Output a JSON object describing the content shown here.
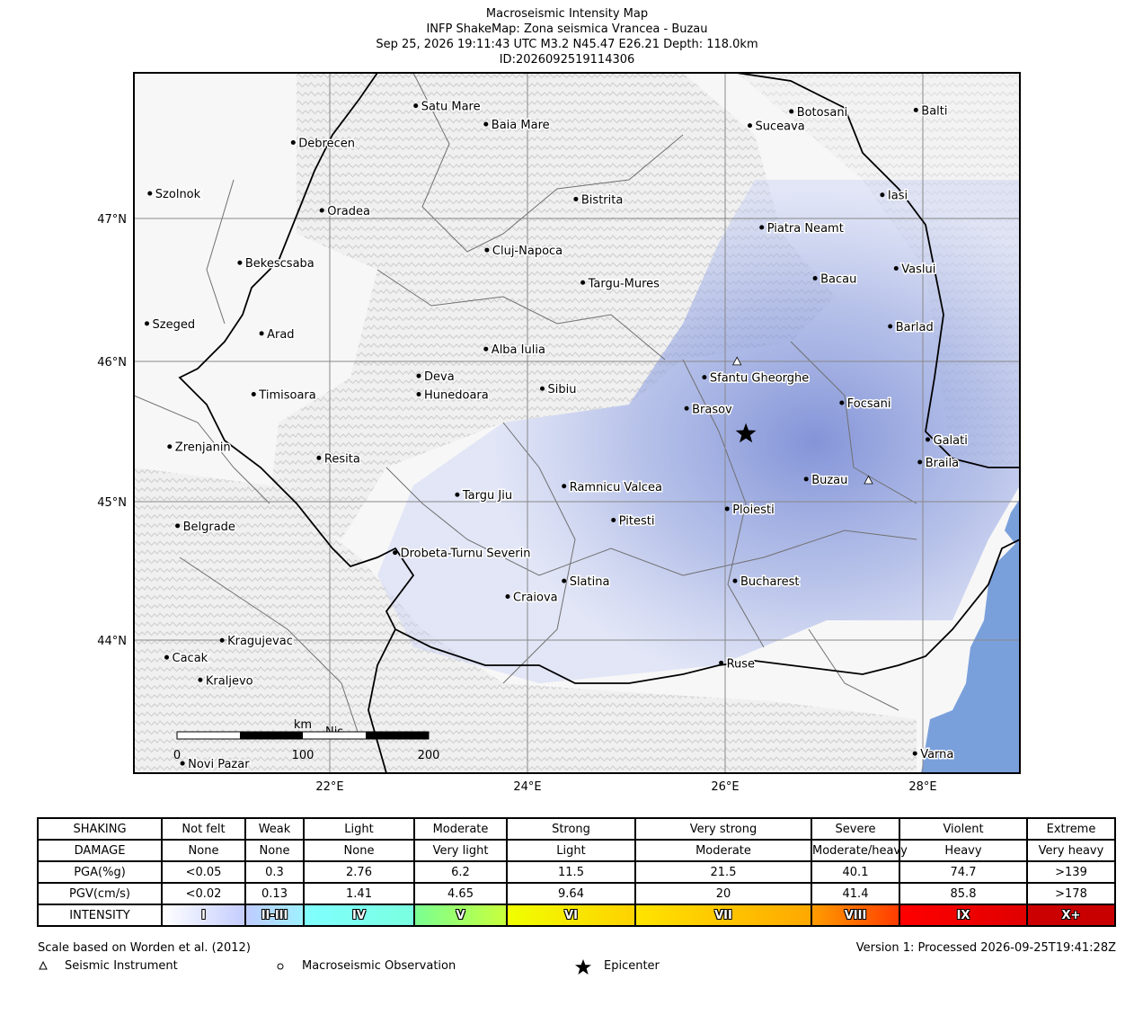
{
  "title": {
    "line1": "Macroseismic Intensity Map",
    "line2": "INFP ShakeMap: Zona seismica Vrancea - Buzau",
    "line3": "Sep 25, 2026 19:11:43 UTC M3.2 N45.47 E26.21 Depth: 118.0km",
    "line4": "ID:2026092519114306"
  },
  "map": {
    "lat_labels": [
      "47°N",
      "46°N",
      "45°N",
      "44°N"
    ],
    "lon_labels": [
      "22°E",
      "24°E",
      "26°E",
      "28°E"
    ],
    "cities": [
      {
        "name": "Satu Mare",
        "lon": 22.87,
        "lat": 47.79
      },
      {
        "name": "Baia Mare",
        "lon": 23.58,
        "lat": 47.66
      },
      {
        "name": "Debrecen",
        "lon": 21.63,
        "lat": 47.53
      },
      {
        "name": "Suceava",
        "lon": 26.25,
        "lat": 47.65
      },
      {
        "name": "Botosani",
        "lon": 26.67,
        "lat": 47.75
      },
      {
        "name": "Balti",
        "lon": 27.93,
        "lat": 47.76
      },
      {
        "name": "Szolnok",
        "lon": 20.18,
        "lat": 47.17
      },
      {
        "name": "Bistrita",
        "lon": 24.49,
        "lat": 47.13
      },
      {
        "name": "Iasi",
        "lon": 27.59,
        "lat": 47.16
      },
      {
        "name": "Oradea",
        "lon": 21.92,
        "lat": 47.05
      },
      {
        "name": "Piatra Neamt",
        "lon": 26.37,
        "lat": 46.93
      },
      {
        "name": "Cluj-Napoca",
        "lon": 23.59,
        "lat": 46.77
      },
      {
        "name": "Bekescsaba",
        "lon": 21.09,
        "lat": 46.68
      },
      {
        "name": "Vaslui",
        "lon": 27.73,
        "lat": 46.64
      },
      {
        "name": "Bacau",
        "lon": 26.91,
        "lat": 46.57
      },
      {
        "name": "Targu-Mures",
        "lon": 24.56,
        "lat": 46.54
      },
      {
        "name": "Szeged",
        "lon": 20.15,
        "lat": 46.25
      },
      {
        "name": "Arad",
        "lon": 21.31,
        "lat": 46.18
      },
      {
        "name": "Barlad",
        "lon": 27.67,
        "lat": 46.23
      },
      {
        "name": "Alba Iulia",
        "lon": 23.58,
        "lat": 46.07
      },
      {
        "name": "Sfantu Gheorghe",
        "lon": 25.79,
        "lat": 45.87
      },
      {
        "name": "Deva",
        "lon": 22.9,
        "lat": 45.88
      },
      {
        "name": "Sibiu",
        "lon": 24.15,
        "lat": 45.79
      },
      {
        "name": "Timisoara",
        "lon": 21.23,
        "lat": 45.75
      },
      {
        "name": "Hunedoara",
        "lon": 22.9,
        "lat": 45.75
      },
      {
        "name": "Focsani",
        "lon": 27.18,
        "lat": 45.69
      },
      {
        "name": "Brasov",
        "lon": 25.61,
        "lat": 45.65
      },
      {
        "name": "Galati",
        "lon": 28.05,
        "lat": 45.43
      },
      {
        "name": "Zrenjanin",
        "lon": 20.38,
        "lat": 45.38
      },
      {
        "name": "Resita",
        "lon": 21.89,
        "lat": 45.3
      },
      {
        "name": "Braila",
        "lon": 27.97,
        "lat": 45.27
      },
      {
        "name": "Buzau",
        "lon": 26.82,
        "lat": 45.15
      },
      {
        "name": "Ramnicu Valcea",
        "lon": 24.37,
        "lat": 45.1
      },
      {
        "name": "Targu Jiu",
        "lon": 23.29,
        "lat": 45.04
      },
      {
        "name": "Ploiesti",
        "lon": 26.02,
        "lat": 44.94
      },
      {
        "name": "Pitesti",
        "lon": 24.87,
        "lat": 44.86
      },
      {
        "name": "Belgrade",
        "lon": 20.46,
        "lat": 44.82
      },
      {
        "name": "Drobeta-Turnu Severin",
        "lon": 22.66,
        "lat": 44.63
      },
      {
        "name": "Slatina",
        "lon": 24.37,
        "lat": 44.43
      },
      {
        "name": "Bucharest",
        "lon": 26.1,
        "lat": 44.43
      },
      {
        "name": "Craiova",
        "lon": 23.8,
        "lat": 44.32
      },
      {
        "name": "Kragujevac",
        "lon": 20.91,
        "lat": 44.01
      },
      {
        "name": "Cacak",
        "lon": 20.35,
        "lat": 43.89
      },
      {
        "name": "Ruse",
        "lon": 25.96,
        "lat": 43.85
      },
      {
        "name": "Kraljevo",
        "lon": 20.69,
        "lat": 43.73
      },
      {
        "name": "Varna",
        "lon": 27.92,
        "lat": 43.21
      },
      {
        "name": "Novi Pazar",
        "lon": 20.51,
        "lat": 43.14
      }
    ],
    "partial_city_label": "Nis",
    "epicenter": {
      "lon": 26.21,
      "lat": 45.47
    },
    "instruments": [
      {
        "lon": 26.12,
        "lat": 45.98
      },
      {
        "lon": 27.45,
        "lat": 45.14
      }
    ],
    "scale_bar": {
      "unit": "km",
      "labels": [
        "0",
        "100",
        "200"
      ]
    },
    "colors": {
      "water": "#7aa0dc",
      "intensity_tint": "#7b8ed8",
      "grid": "#888888",
      "national_border": "#000000",
      "admin_border": "#707070"
    }
  },
  "legend": {
    "rows": [
      {
        "label": "SHAKING",
        "cells": [
          "Not felt",
          "Weak",
          "Light",
          "Moderate",
          "Strong",
          "Very strong",
          "Severe",
          "Violent",
          "Extreme"
        ]
      },
      {
        "label": "DAMAGE",
        "cells": [
          "None",
          "None",
          "None",
          "Very light",
          "Light",
          "Moderate",
          "Moderate/heavy",
          "Heavy",
          "Very heavy"
        ]
      },
      {
        "label": "PGA(%g)",
        "cells": [
          "<0.05",
          "0.3",
          "2.76",
          "6.2",
          "11.5",
          "21.5",
          "40.1",
          "74.7",
          ">139"
        ]
      },
      {
        "label": "PGV(cm/s)",
        "cells": [
          "<0.02",
          "0.13",
          "1.41",
          "4.65",
          "9.64",
          "20",
          "41.4",
          "85.8",
          ">178"
        ]
      }
    ],
    "intensity": {
      "label": "INTENSITY",
      "cells": [
        {
          "text": "I",
          "from": "#ffffff",
          "to": "#c4cdfe"
        },
        {
          "text": "II-III",
          "from": "#bfccff",
          "to": "#9ff0ff"
        },
        {
          "text": "IV",
          "from": "#80ffff",
          "to": "#7affe0"
        },
        {
          "text": "V",
          "from": "#7aff93",
          "to": "#c8ff3c"
        },
        {
          "text": "VI",
          "from": "#f0ff00",
          "to": "#ffd200"
        },
        {
          "text": "VII",
          "from": "#ffe400",
          "to": "#ffa800"
        },
        {
          "text": "VIII",
          "from": "#ff9c00",
          "to": "#ff3c00"
        },
        {
          "text": "IX",
          "from": "#ff0000",
          "to": "#e00000"
        },
        {
          "text": "X+",
          "from": "#cc0000",
          "to": "#c80000"
        }
      ]
    }
  },
  "footer": {
    "scale_note": "Scale based on Worden et al. (2012)",
    "version": "Version 1: Processed 2026-09-25T19:41:28Z",
    "legend_instrument": "Seismic Instrument",
    "legend_macro": "Macroseismic Observation",
    "legend_epicenter": "Epicenter"
  }
}
